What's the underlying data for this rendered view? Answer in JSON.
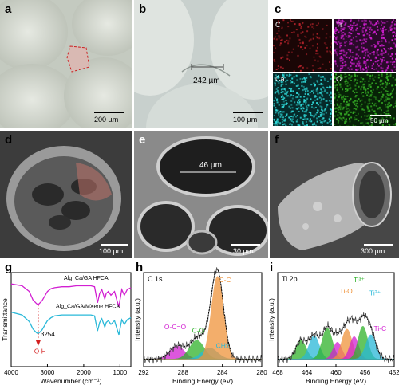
{
  "panels": {
    "a": {
      "label": "a",
      "scale": "200 µm"
    },
    "b": {
      "label": "b",
      "scale": "100 µm",
      "measure": "242 µm"
    },
    "c": {
      "label": "c",
      "scale": "50 µm",
      "maps": [
        {
          "name": "C",
          "color": "#b0222a"
        },
        {
          "name": "Ti",
          "color": "#d21fd2"
        },
        {
          "name": "Ca",
          "color": "#2fd8d8"
        },
        {
          "name": "O",
          "color": "#34a824"
        }
      ]
    },
    "d": {
      "label": "d",
      "scale": "100 µm"
    },
    "e": {
      "label": "e",
      "scale": "30 µm",
      "measure": "46 µm"
    },
    "f": {
      "label": "f",
      "scale": "300 µm"
    }
  },
  "chart_data": [
    {
      "type": "line",
      "panel": "g",
      "xlabel": "Wavenumber (cm⁻¹)",
      "ylabel": "Transmittance",
      "xlim": [
        4000,
        700
      ],
      "xticks": [
        4000,
        3000,
        2000,
        1000
      ],
      "annotations": [
        "3254",
        "O-H"
      ],
      "series": [
        {
          "name": "Alg_Ca/GA  HFCA",
          "color": "#d21fd2",
          "x": [
            4000,
            3700,
            3500,
            3400,
            3300,
            3254,
            3150,
            3000,
            2900,
            2800,
            2600,
            2400,
            2200,
            2000,
            1800,
            1700,
            1620,
            1560,
            1500,
            1420,
            1380,
            1320,
            1250,
            1150,
            1080,
            1030,
            950,
            880,
            800,
            700
          ],
          "y": [
            0.88,
            0.86,
            0.8,
            0.71,
            0.67,
            0.66,
            0.7,
            0.8,
            0.83,
            0.84,
            0.85,
            0.85,
            0.86,
            0.86,
            0.86,
            0.85,
            0.68,
            0.78,
            0.82,
            0.72,
            0.78,
            0.8,
            0.76,
            0.8,
            0.7,
            0.64,
            0.82,
            0.76,
            0.82,
            0.84
          ]
        },
        {
          "name": "Alg_Ca/GA/MXene  HFCA",
          "color": "#29b8d8",
          "x": [
            4000,
            3700,
            3500,
            3400,
            3300,
            3254,
            3150,
            3000,
            2900,
            2800,
            2600,
            2400,
            2200,
            2000,
            1800,
            1700,
            1620,
            1560,
            1500,
            1420,
            1380,
            1320,
            1250,
            1150,
            1080,
            1030,
            950,
            880,
            800,
            700
          ],
          "y": [
            0.58,
            0.55,
            0.48,
            0.4,
            0.36,
            0.35,
            0.39,
            0.49,
            0.52,
            0.54,
            0.55,
            0.55,
            0.55,
            0.55,
            0.55,
            0.54,
            0.38,
            0.47,
            0.51,
            0.42,
            0.47,
            0.49,
            0.45,
            0.49,
            0.4,
            0.34,
            0.5,
            0.45,
            0.5,
            0.52
          ]
        }
      ]
    },
    {
      "type": "area",
      "panel": "h",
      "title": "C 1s",
      "xlabel": "Binding Energy (eV)",
      "ylabel": "Intensity (a.u.)",
      "xlim": [
        292,
        280
      ],
      "xticks": [
        292,
        288,
        284,
        280
      ],
      "peaks": [
        {
          "name": "O-C=O",
          "center": 288.6,
          "width": 0.75,
          "height": 0.14,
          "color": "#d21fd2"
        },
        {
          "name": "C-O",
          "center": 286.6,
          "width": 0.75,
          "height": 0.2,
          "color": "#2fb22a"
        },
        {
          "name": "CHx",
          "center": 285.3,
          "width": 0.8,
          "height": 0.12,
          "color": "#29b8d8"
        },
        {
          "name": "C-C",
          "center": 284.5,
          "width": 0.62,
          "height": 0.88,
          "color": "#f0933a"
        }
      ]
    },
    {
      "type": "area",
      "panel": "i",
      "title": "Ti 2p",
      "xlabel": "Binding Energy (eV)",
      "ylabel": "Intensity (a.u.)",
      "xlim": [
        468,
        452
      ],
      "xticks": [
        468,
        464,
        460,
        456,
        452
      ],
      "labels": [
        "Ti-O",
        "Ti³⁺",
        "Ti²⁺",
        "Ti-C"
      ],
      "peaks": [
        {
          "name": "a",
          "center": 464.8,
          "width": 0.7,
          "height": 0.2,
          "color": "#2fb22a"
        },
        {
          "name": "b",
          "center": 463.0,
          "width": 0.7,
          "height": 0.25,
          "color": "#29b8d8"
        },
        {
          "name": "c",
          "center": 461.2,
          "width": 0.7,
          "height": 0.33,
          "color": "#2fb22a"
        },
        {
          "name": "d",
          "center": 459.8,
          "width": 0.6,
          "height": 0.18,
          "color": "#d21fd2"
        },
        {
          "name": "e",
          "center": 458.5,
          "width": 0.7,
          "height": 0.32,
          "color": "#f0933a"
        },
        {
          "name": "f",
          "center": 457.5,
          "width": 0.6,
          "height": 0.24,
          "color": "#d21fd2"
        },
        {
          "name": "g",
          "center": 456.3,
          "width": 0.65,
          "height": 0.35,
          "color": "#2fb22a"
        },
        {
          "name": "h",
          "center": 455.2,
          "width": 0.7,
          "height": 0.26,
          "color": "#29b8d8"
        }
      ],
      "label_colors": [
        "#f0933a",
        "#2fb22a",
        "#29b8d8",
        "#d21fd2"
      ]
    }
  ],
  "chart_labels": {
    "g": "g",
    "h": "h",
    "i": "i",
    "series_g1": "Alg_Ca/GA  HFCA",
    "series_g2": "Alg_Ca/GA/MXene  HFCA"
  }
}
